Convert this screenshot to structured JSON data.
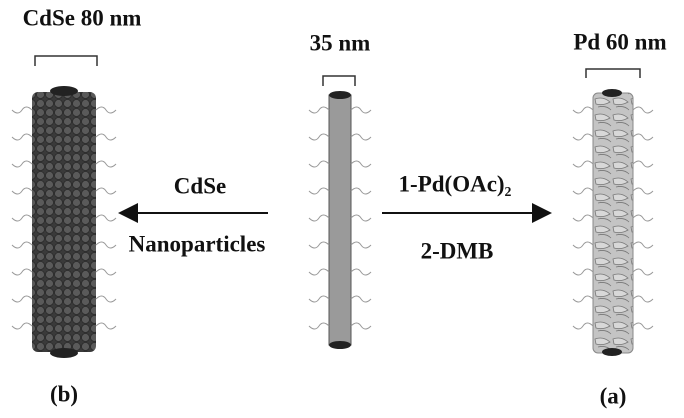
{
  "scale_labels": [
    "CdSe 80 nm",
    "35 nm",
    "Pd 60 nm"
  ],
  "left_arrow": {
    "top": "CdSe",
    "bottom": "Nanoparticles"
  },
  "right_arrow": {
    "top": "1-Pd(OAc)₂",
    "bottom": "2-DMB"
  },
  "panel_labels": [
    "(b)",
    "(a)"
  ]
}
